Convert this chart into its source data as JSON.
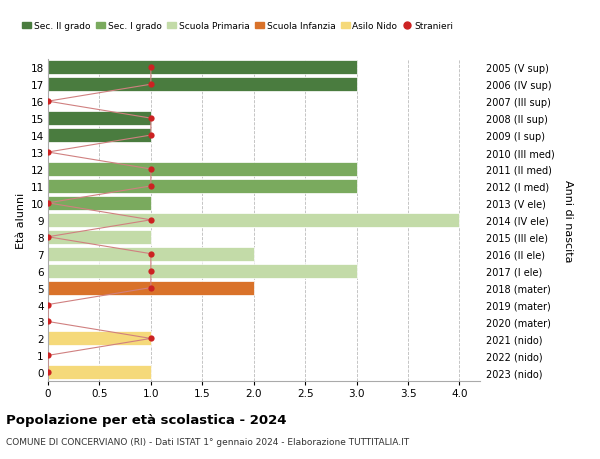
{
  "ages": [
    18,
    17,
    16,
    15,
    14,
    13,
    12,
    11,
    10,
    9,
    8,
    7,
    6,
    5,
    4,
    3,
    2,
    1,
    0
  ],
  "years": [
    "2005 (V sup)",
    "2006 (IV sup)",
    "2007 (III sup)",
    "2008 (II sup)",
    "2009 (I sup)",
    "2010 (III med)",
    "2011 (II med)",
    "2012 (I med)",
    "2013 (V ele)",
    "2014 (IV ele)",
    "2015 (III ele)",
    "2016 (II ele)",
    "2017 (I ele)",
    "2018 (mater)",
    "2019 (mater)",
    "2020 (mater)",
    "2021 (nido)",
    "2022 (nido)",
    "2023 (nido)"
  ],
  "bars": [
    {
      "age": 18,
      "value": 3,
      "color": "#4a7c3f"
    },
    {
      "age": 17,
      "value": 3,
      "color": "#4a7c3f"
    },
    {
      "age": 16,
      "value": 0,
      "color": "#4a7c3f"
    },
    {
      "age": 15,
      "value": 1,
      "color": "#4a7c3f"
    },
    {
      "age": 14,
      "value": 1,
      "color": "#4a7c3f"
    },
    {
      "age": 13,
      "value": 0,
      "color": "#4a7c3f"
    },
    {
      "age": 12,
      "value": 3,
      "color": "#7aaa5e"
    },
    {
      "age": 11,
      "value": 3,
      "color": "#7aaa5e"
    },
    {
      "age": 10,
      "value": 1,
      "color": "#7aaa5e"
    },
    {
      "age": 9,
      "value": 4,
      "color": "#c3dba8"
    },
    {
      "age": 8,
      "value": 1,
      "color": "#c3dba8"
    },
    {
      "age": 7,
      "value": 2,
      "color": "#c3dba8"
    },
    {
      "age": 6,
      "value": 3,
      "color": "#c3dba8"
    },
    {
      "age": 5,
      "value": 2,
      "color": "#d9722a"
    },
    {
      "age": 4,
      "value": 0,
      "color": "#d9722a"
    },
    {
      "age": 3,
      "value": 0,
      "color": "#d9722a"
    },
    {
      "age": 2,
      "value": 1,
      "color": "#f5d97a"
    },
    {
      "age": 1,
      "value": 0,
      "color": "#f5d97a"
    },
    {
      "age": 0,
      "value": 1,
      "color": "#f5d97a"
    }
  ],
  "stranieri": [
    {
      "age": 18,
      "value": 1
    },
    {
      "age": 17,
      "value": 1
    },
    {
      "age": 16,
      "value": 0
    },
    {
      "age": 15,
      "value": 1
    },
    {
      "age": 14,
      "value": 1
    },
    {
      "age": 13,
      "value": 0
    },
    {
      "age": 12,
      "value": 1
    },
    {
      "age": 11,
      "value": 1
    },
    {
      "age": 10,
      "value": 0
    },
    {
      "age": 9,
      "value": 1
    },
    {
      "age": 8,
      "value": 0
    },
    {
      "age": 7,
      "value": 1
    },
    {
      "age": 6,
      "value": 1
    },
    {
      "age": 5,
      "value": 1
    },
    {
      "age": 4,
      "value": 0
    },
    {
      "age": 3,
      "value": 0
    },
    {
      "age": 2,
      "value": 1
    },
    {
      "age": 1,
      "value": 0
    },
    {
      "age": 0,
      "value": 0
    }
  ],
  "legend": [
    {
      "label": "Sec. II grado",
      "color": "#4a7c3f",
      "type": "patch"
    },
    {
      "label": "Sec. I grado",
      "color": "#7aaa5e",
      "type": "patch"
    },
    {
      "label": "Scuola Primaria",
      "color": "#c3dba8",
      "type": "patch"
    },
    {
      "label": "Scuola Infanzia",
      "color": "#d9722a",
      "type": "patch"
    },
    {
      "label": "Asilo Nido",
      "color": "#f5d97a",
      "type": "patch"
    },
    {
      "label": "Stranieri",
      "color": "#cc2222",
      "type": "dot"
    }
  ],
  "stranieri_color": "#cc2222",
  "stranieri_line_color": "#d08080",
  "xlim": [
    0,
    4.2
  ],
  "ylim": [
    -0.5,
    18.5
  ],
  "ylabel_left": "Età alunni",
  "ylabel_right": "Anni di nascita",
  "title": "Popolazione per età scolastica - 2024",
  "subtitle": "COMUNE DI CONCERVIANO (RI) - Dati ISTAT 1° gennaio 2024 - Elaborazione TUTTITALIA.IT",
  "bg_color": "#ffffff",
  "grid_color": "#bbbbbb",
  "bar_height": 0.82,
  "xticks": [
    0,
    0.5,
    1.0,
    1.5,
    2.0,
    2.5,
    3.0,
    3.5,
    4.0
  ],
  "xtick_labels": [
    "0",
    "0.5",
    "1.0",
    "1.5",
    "2.0",
    "2.5",
    "3.0",
    "3.5",
    "4.0"
  ]
}
